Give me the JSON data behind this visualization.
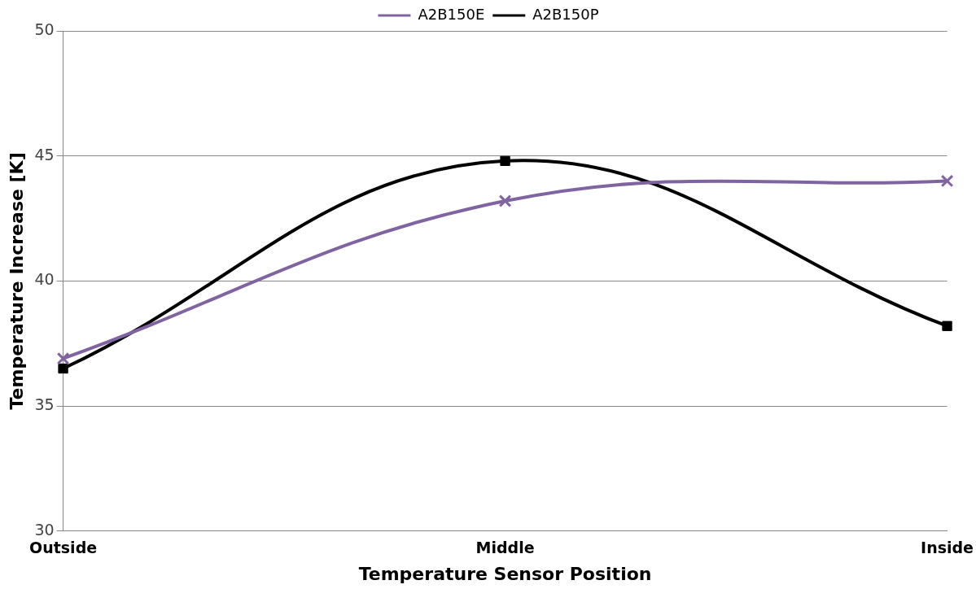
{
  "chart_data": {
    "type": "line",
    "xlabel": "Temperature Sensor Position",
    "ylabel": "Temperature Increase [K]",
    "categories": [
      "Outside",
      "Middle",
      "Inside"
    ],
    "series": [
      {
        "name": "A2B150E",
        "color": "#8064a2",
        "values": [
          36.9,
          43.2,
          44.0
        ],
        "marker": "cross"
      },
      {
        "name": "A2B150P",
        "color": "#000000",
        "values": [
          36.5,
          44.8,
          38.2
        ],
        "marker": "square"
      }
    ],
    "ylim": [
      30,
      50
    ],
    "yticks": [
      30,
      35,
      40,
      45,
      50
    ],
    "grid": "y",
    "legend": "top",
    "line_style": "solid"
  }
}
